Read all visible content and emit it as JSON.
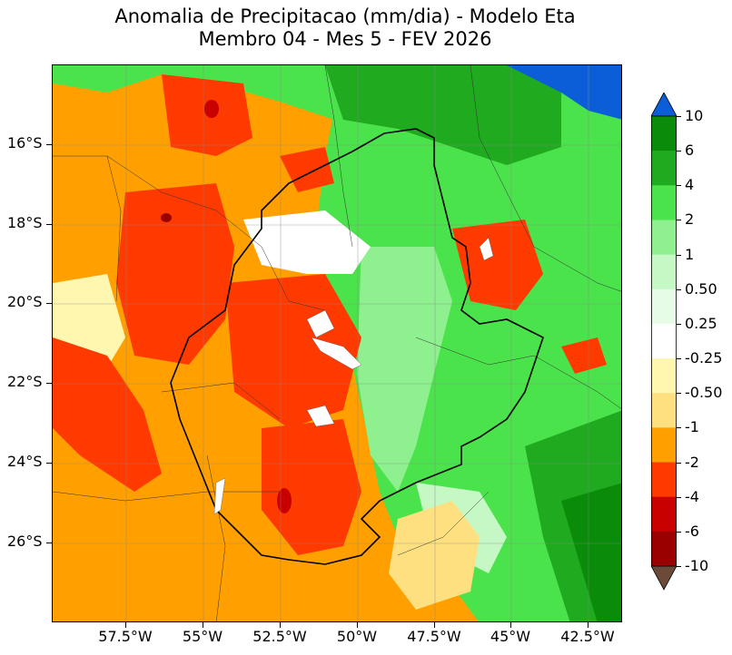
{
  "title": {
    "line1": "Anomalia de Precipitacao (mm/dia) - Modelo Eta",
    "line2": "Membro 04 - Mes 5 - FEV 2026"
  },
  "map": {
    "lat_range": [
      -28,
      -14
    ],
    "lon_range": [
      -60,
      -41.5
    ],
    "lat_labels": [
      "16°S",
      "18°S",
      "20°S",
      "22°S",
      "24°S",
      "26°S"
    ],
    "lon_labels": [
      "57.5°W",
      "55°W",
      "52.5°W",
      "50°W",
      "47.5°W",
      "45°W",
      "42.5°W"
    ]
  },
  "legend": {
    "labels": [
      "10",
      "6",
      "4",
      "2",
      "1",
      "0.50",
      "0.25",
      "-0.25",
      "-0.50",
      "-1",
      "-2",
      "-4",
      "-6",
      "-10"
    ],
    "colors": [
      "#0b5ed7",
      "#0a8c0a",
      "#1faa1f",
      "#4be34b",
      "#8ef08e",
      "#c6f8c6",
      "#e6fce6",
      "#ffffff",
      "#fff6b0",
      "#ffe080",
      "#ffa000",
      "#ff3a00",
      "#c80000",
      "#9a0000",
      "#6b4a3a"
    ]
  }
}
